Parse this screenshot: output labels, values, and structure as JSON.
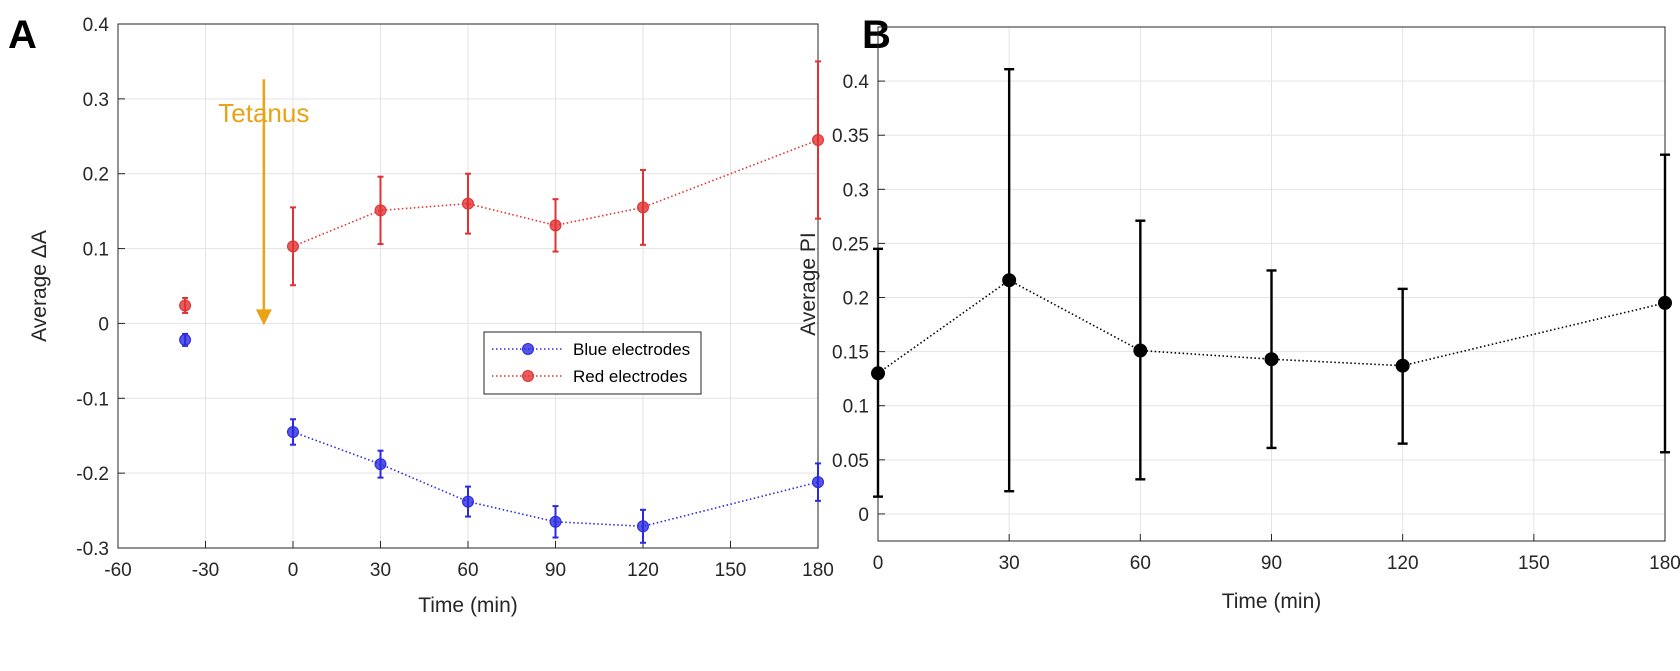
{
  "panels": {
    "a": {
      "letter": "A"
    },
    "b": {
      "letter": "B"
    }
  },
  "colors": {
    "blue": "#2a2ae0",
    "red": "#e03232",
    "black": "#000000",
    "annotation": "#e8a317",
    "grid": "#e3e3e3",
    "axis": "#262626"
  },
  "chart_data": [
    {
      "type": "line",
      "panel": "A",
      "xlabel": "Time (min)",
      "ylabel": "Average ΔA",
      "xlim": [
        -60,
        180
      ],
      "ylim": [
        -0.3,
        0.4
      ],
      "xticks": [
        -60,
        -30,
        0,
        30,
        60,
        90,
        120,
        150,
        180
      ],
      "xtick_labels": [
        "-60",
        "-30",
        "0",
        "30",
        "60",
        "90",
        "120",
        "150",
        "180"
      ],
      "yticks": [
        -0.3,
        -0.2,
        -0.1,
        0,
        0.1,
        0.2,
        0.3,
        0.4
      ],
      "ytick_labels": [
        "-0.3",
        "-0.2",
        "-0.1",
        "0",
        "0.1",
        "0.2",
        "0.3",
        "0.4"
      ],
      "grid": true,
      "legend_position": "center-right",
      "annotation": {
        "text": "Tetanus",
        "x": -10,
        "y_from": 0.25,
        "y_to": 0.0
      },
      "series": [
        {
          "name": "Blue electrodes",
          "color_key": "blue",
          "baseline": {
            "x": -37,
            "y": -0.022,
            "err": 0.008
          },
          "x": [
            0,
            30,
            60,
            90,
            120,
            180
          ],
          "y": [
            -0.145,
            -0.188,
            -0.238,
            -0.265,
            -0.271,
            -0.212
          ],
          "err": [
            0.017,
            0.018,
            0.02,
            0.021,
            0.022,
            0.025
          ]
        },
        {
          "name": "Red electrodes",
          "color_key": "red",
          "baseline": {
            "x": -37,
            "y": 0.024,
            "err": 0.01
          },
          "x": [
            0,
            30,
            60,
            90,
            120,
            180
          ],
          "y": [
            0.103,
            0.151,
            0.16,
            0.131,
            0.155,
            0.245
          ],
          "err": [
            0.052,
            0.045,
            0.04,
            0.035,
            0.05,
            0.105
          ]
        }
      ]
    },
    {
      "type": "line",
      "panel": "B",
      "xlabel": "Time (min)",
      "ylabel": "Average PI",
      "xlim": [
        0,
        180
      ],
      "ylim": [
        -0.025,
        0.45
      ],
      "xticks": [
        0,
        30,
        60,
        90,
        120,
        150,
        180
      ],
      "xtick_labels": [
        "0",
        "30",
        "60",
        "90",
        "120",
        "150",
        "180"
      ],
      "yticks": [
        0,
        0.05,
        0.1,
        0.15,
        0.2,
        0.25,
        0.3,
        0.35,
        0.4
      ],
      "ytick_labels": [
        "0",
        "0.05",
        "0.1",
        "0.15",
        "0.2",
        "0.25",
        "0.3",
        "0.35",
        "0.4"
      ],
      "grid": true,
      "series": [
        {
          "name": "Average PI",
          "color_key": "black",
          "x": [
            0,
            30,
            60,
            90,
            120,
            180
          ],
          "y": [
            0.13,
            0.216,
            0.151,
            0.143,
            0.137,
            0.195
          ],
          "err_low": [
            0.016,
            0.021,
            0.032,
            0.061,
            0.065,
            0.057
          ],
          "err_high": [
            0.245,
            0.411,
            0.271,
            0.225,
            0.208,
            0.332
          ]
        }
      ]
    }
  ]
}
